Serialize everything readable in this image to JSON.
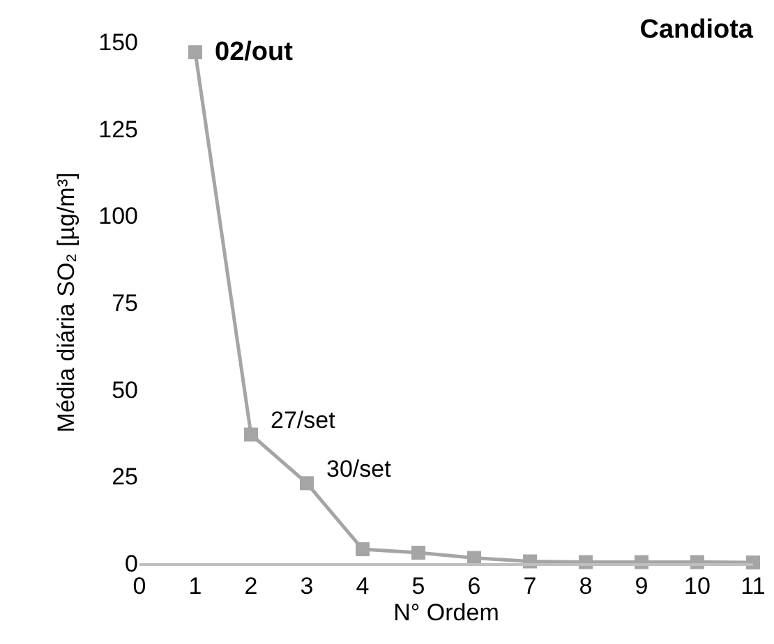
{
  "chart_data": {
    "type": "line",
    "title": "Candiota",
    "xlabel": "N° Ordem",
    "ylabel": "Média diária SO₂ [µg/m³]",
    "x": [
      1,
      2,
      3,
      4,
      5,
      6,
      7,
      8,
      9,
      10,
      11
    ],
    "series": [
      {
        "color": "#a5a5a5",
        "values": [
          147,
          37,
          23,
          4,
          3,
          1.5,
          0.5,
          0.3,
          0.3,
          0.3,
          0.2
        ]
      }
    ],
    "xlim": [
      0,
      11
    ],
    "xticks": [
      0,
      1,
      2,
      3,
      4,
      5,
      6,
      7,
      8,
      9,
      10,
      11
    ],
    "ylim": [
      0,
      150
    ],
    "yticks": [
      0,
      25,
      50,
      75,
      100,
      125,
      150
    ],
    "grid": false,
    "legend": false,
    "marker": "square",
    "line_style": "solid",
    "annotations": [
      {
        "text": "02/out",
        "x": 1,
        "y": 147
      },
      {
        "text": "27/set",
        "x": 2,
        "y": 37
      },
      {
        "text": "30/set",
        "x": 3,
        "y": 23
      }
    ]
  }
}
